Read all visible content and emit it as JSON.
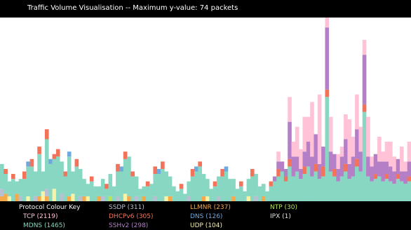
{
  "window": {
    "title": "Traffic Volume Visualisation -- Maximum y-value: 74 packets"
  },
  "legend": {
    "heading": "Protocol Colour Key",
    "items": [
      {
        "label": "TCP (2119)",
        "protocol": "TCP",
        "count": 2119,
        "color": "#ffc2d6"
      },
      {
        "label": "MDNS (1465)",
        "protocol": "MDNS",
        "count": 1465,
        "color": "#87d7c3"
      },
      {
        "label": "SSDP (311)",
        "protocol": "SSDP",
        "count": 311,
        "color": "#b8bfd0"
      },
      {
        "label": "DHCPv6 (305)",
        "protocol": "DHCPv6",
        "count": 305,
        "color": "#f2725a"
      },
      {
        "label": "SSHv2 (298)",
        "protocol": "SSHv2",
        "count": 298,
        "color": "#b47fc6"
      },
      {
        "label": "LLMNR (237)",
        "protocol": "LLMNR",
        "count": 237,
        "color": "#f5a94a"
      },
      {
        "label": "DNS (126)",
        "protocol": "DNS",
        "count": 126,
        "color": "#6fa8dc"
      },
      {
        "label": "UDP (104)",
        "protocol": "UDP",
        "count": 104,
        "color": "#f7f2a5"
      },
      {
        "label": "NTP (30)",
        "protocol": "NTP",
        "count": 30,
        "color": "#b5e35c"
      },
      {
        "label": "IPX (1)",
        "protocol": "IPX",
        "count": 1,
        "color": "#e0e0e0"
      }
    ]
  },
  "chart_data": {
    "type": "bar",
    "stacked": true,
    "ylim": [
      0,
      74
    ],
    "series_order": [
      "NTP",
      "LLMNR",
      "UDP",
      "SSDP",
      "MDNS",
      "DNS",
      "DHCPv6",
      "SSHv2",
      "TCP"
    ],
    "colors": {
      "TCP": "#ffc2d6",
      "MDNS": "#87d7c3",
      "SSDP": "#b8bfd0",
      "DHCPv6": "#f2725a",
      "SSHv2": "#b47fc6",
      "LLMNR": "#f5a94a",
      "DNS": "#6fa8dc",
      "UDP": "#f7f2a5",
      "NTP": "#b5e35c",
      "IPX": "#e0e0e0"
    },
    "bins": [
      {
        "SSDP": 3,
        "MDNS": 10,
        "LLMNR": 2
      },
      {
        "MDNS": 8,
        "DHCPv6": 2,
        "LLMNR": 3
      },
      {
        "MDNS": 6,
        "UDP": 2
      },
      {
        "MDNS": 9,
        "DHCPv6": 2
      },
      {
        "MDNS": 5,
        "LLMNR": 3
      },
      {
        "MDNS": 7,
        "SSDP": 2
      },
      {
        "MDNS": 9,
        "DHCPv6": 3
      },
      {
        "MDNS": 12,
        "DNS": 2,
        "UDP": 2
      },
      {
        "MDNS": 14,
        "DHCPv6": 3
      },
      {
        "MDNS": 10,
        "SSDP": 2
      },
      {
        "MDNS": 17,
        "DHCPv6": 3,
        "LLMNR": 2
      },
      {
        "MDNS": 8,
        "UDP": 4
      },
      {
        "MDNS": 20,
        "DHCPv6": 4,
        "SSDP": 3,
        "LLMNR": 2
      },
      {
        "MDNS": 15,
        "DNS": 2
      },
      {
        "MDNS": 12,
        "DHCPv6": 2,
        "UDP": 5
      },
      {
        "MDNS": 18,
        "DHCPv6": 3
      },
      {
        "MDNS": 13,
        "SSDP": 3
      },
      {
        "MDNS": 10,
        "DHCPv6": 2
      },
      {
        "MDNS": 16,
        "DNS": 2,
        "LLMNR": 2
      },
      {
        "MDNS": 9,
        "UDP": 3
      },
      {
        "MDNS": 14,
        "DHCPv6": 3
      },
      {
        "MDNS": 11,
        "SSDP": 2
      },
      {
        "MDNS": 7,
        "LLMNR": 2
      },
      {
        "MDNS": 5,
        "UDP": 2
      },
      {
        "MDNS": 8,
        "DHCPv6": 2
      },
      {
        "MDNS": 6
      },
      {
        "MDNS": 4,
        "LLMNR": 2
      },
      {
        "MDNS": 7,
        "SSDP": 2
      },
      {
        "MDNS": 5,
        "DHCPv6": 2
      },
      {
        "MDNS": 9,
        "NTP": 2
      },
      {
        "MDNS": 6
      },
      {
        "MDNS": 10,
        "DHCPv6": 3,
        "SSDP": 2
      },
      {
        "MDNS": 12,
        "DNS": 2
      },
      {
        "MDNS": 14,
        "DHCPv6": 3,
        "UDP": 3
      },
      {
        "MDNS": 16,
        "LLMNR": 2
      },
      {
        "MDNS": 10,
        "DHCPv6": 2
      },
      {
        "MDNS": 8,
        "SSDP": 2
      },
      {
        "MDNS": 5
      },
      {
        "MDNS": 4,
        "LLMNR": 2
      },
      {
        "MDNS": 6,
        "DHCPv6": 2
      },
      {
        "MDNS": 7
      },
      {
        "MDNS": 9,
        "DHCPv6": 3,
        "SSDP": 2
      },
      {
        "MDNS": 11,
        "DNS": 2
      },
      {
        "MDNS": 13,
        "DHCPv6": 3
      },
      {
        "MDNS": 10,
        "UDP": 2
      },
      {
        "MDNS": 8,
        "LLMNR": 2
      },
      {
        "MDNS": 6
      },
      {
        "MDNS": 4
      },
      {
        "MDNS": 5,
        "DHCPv6": 2
      },
      {
        "MDNS": 3
      },
      {
        "MDNS": 6,
        "SSDP": 2
      },
      {
        "MDNS": 10,
        "DHCPv6": 3
      },
      {
        "MDNS": 12,
        "DNS": 2
      },
      {
        "MDNS": 14,
        "DHCPv6": 2
      },
      {
        "MDNS": 9,
        "LLMNR": 2
      },
      {
        "MDNS": 7,
        "UDP": 2
      },
      {
        "MDNS": 5
      },
      {
        "MDNS": 6,
        "DHCPv6": 2
      },
      {
        "MDNS": 8,
        "SSDP": 2
      },
      {
        "MDNS": 10,
        "DHCPv6": 3
      },
      {
        "MDNS": 12,
        "DNS": 2
      },
      {
        "MDNS": 9
      },
      {
        "MDNS": 7,
        "LLMNR": 2
      },
      {
        "MDNS": 5
      },
      {
        "MDNS": 6,
        "DHCPv6": 2
      },
      {
        "MDNS": 4
      },
      {
        "MDNS": 7,
        "UDP": 2
      },
      {
        "MDNS": 10,
        "DHCPv6": 3
      },
      {
        "MDNS": 9,
        "SSDP": 2
      },
      {
        "MDNS": 6
      },
      {
        "MDNS": 5,
        "LLMNR": 2
      },
      {
        "MDNS": 4
      },
      {
        "MDNS": 6,
        "DHCPv6": 2
      },
      {
        "MDNS": 8,
        "SSHv2": 2
      },
      {
        "MDNS": 10,
        "DHCPv6": 3,
        "SSHv2": 3,
        "TCP": 4
      },
      {
        "MDNS": 12,
        "SSHv2": 4
      },
      {
        "MDNS": 8,
        "SSHv2": 3,
        "DHCPv6": 2
      },
      {
        "MDNS": 14,
        "SSHv2": 15,
        "DHCPv6": 3,
        "TCP": 10
      },
      {
        "MDNS": 10,
        "SSHv2": 8,
        "TCP": 6
      },
      {
        "MDNS": 12,
        "SSHv2": 6,
        "TCP": 12
      },
      {
        "MDNS": 9,
        "SSHv2": 4,
        "TCP": 8
      },
      {
        "MDNS": 11,
        "SSHv2": 6,
        "DHCPv6": 3,
        "TCP": 14
      },
      {
        "MDNS": 14,
        "SSHv2": 10,
        "TCP": 10
      },
      {
        "MDNS": 10,
        "SSHv2": 8,
        "TCP": 22
      },
      {
        "MDNS": 12,
        "SSHv2": 12,
        "DHCPv6": 3
      },
      {
        "MDNS": 9,
        "SSHv2": 6,
        "TCP": 28
      },
      {
        "MDNS": 10,
        "SSHv2": 8,
        "DHCPv6": 4
      },
      {
        "MDNS": 42,
        "SSHv2": 25,
        "DHCPv6": 3,
        "TCP": 4
      },
      {
        "MDNS": 12,
        "SSHv2": 8,
        "TCP": 14
      },
      {
        "MDNS": 10,
        "SSHv2": 6,
        "DHCPv6": 3
      },
      {
        "MDNS": 8,
        "SSHv2": 5,
        "TCP": 6
      },
      {
        "MDNS": 10,
        "SSHv2": 8,
        "TCP": 4
      },
      {
        "MDNS": 12,
        "SSHv2": 10,
        "DHCPv6": 3,
        "TCP": 10
      },
      {
        "MDNS": 9,
        "SSHv2": 6,
        "TCP": 18
      },
      {
        "MDNS": 10,
        "SSHv2": 8,
        "TCP": 8
      },
      {
        "MDNS": 14,
        "SSHv2": 12,
        "DHCPv6": 3,
        "TCP": 14
      },
      {
        "MDNS": 12,
        "SSHv2": 8,
        "TCP": 10
      },
      {
        "MDNS": 36,
        "SSHv2": 20,
        "DHCPv6": 3,
        "TCP": 6
      },
      {
        "MDNS": 10,
        "SSHv2": 8,
        "TCP": 16
      },
      {
        "MDNS": 8,
        "SSHv2": 6,
        "TCP": 4
      },
      {
        "MDNS": 9,
        "SSHv2": 8,
        "DHCPv6": 2
      },
      {
        "MDNS": 10,
        "SSHv2": 6,
        "TCP": 10
      },
      {
        "MDNS": 8,
        "SSHv2": 8,
        "TCP": 4
      },
      {
        "MDNS": 9,
        "SSHv2": 5,
        "DHCPv6": 2,
        "TCP": 8
      },
      {
        "MDNS": 8,
        "SSHv2": 6,
        "TCP": 10
      },
      {
        "MDNS": 7,
        "SSHv2": 5,
        "TCP": 6
      },
      {
        "MDNS": 9,
        "SSHv2": 6,
        "DHCPv6": 2
      },
      {
        "MDNS": 8,
        "SSHv2": 4,
        "TCP": 10
      },
      {
        "MDNS": 7,
        "SSHv2": 5,
        "TCP": 4
      },
      {
        "MDNS": 8,
        "SSHv2": 6,
        "DHCPv6": 2,
        "TCP": 8
      }
    ]
  }
}
